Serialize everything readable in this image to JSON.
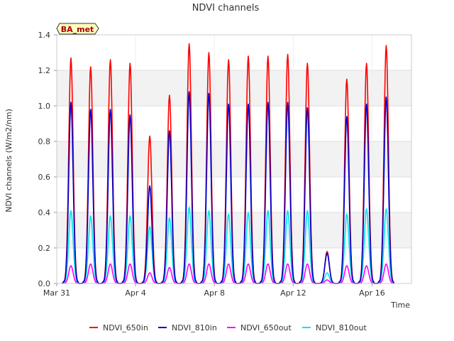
{
  "chart_data": {
    "type": "line",
    "title": "NDVI channels",
    "xlabel": "Time",
    "ylabel": "NDVI channels (W/m2/nm)",
    "badge": "BA_met",
    "xlim": [
      0,
      18
    ],
    "ylim": [
      0,
      1.4
    ],
    "x_ticks": [
      {
        "x": 0,
        "label": "Mar 31"
      },
      {
        "x": 4,
        "label": "Apr 4"
      },
      {
        "x": 8,
        "label": "Apr 8"
      },
      {
        "x": 12,
        "label": "Apr 12"
      },
      {
        "x": 16,
        "label": "Apr 16"
      }
    ],
    "y_ticks": [
      {
        "y": 0.0,
        "label": "0.0"
      },
      {
        "y": 0.2,
        "label": "0.2"
      },
      {
        "y": 0.4,
        "label": "0.4"
      },
      {
        "y": 0.6,
        "label": "0.6"
      },
      {
        "y": 0.8,
        "label": "0.8"
      },
      {
        "y": 1.0,
        "label": "1.0"
      },
      {
        "y": 1.2,
        "label": "1.2"
      },
      {
        "y": 1.4,
        "label": "1.4"
      }
    ],
    "days": [
      0,
      1,
      2,
      3,
      4,
      5,
      6,
      7,
      8,
      9,
      10,
      11,
      12,
      13,
      14,
      15,
      16
    ],
    "series": [
      {
        "name": "NDVI_650in",
        "color": "#ff0000",
        "daily_peaks": [
          1.27,
          1.22,
          1.26,
          1.24,
          0.83,
          1.06,
          1.35,
          1.3,
          1.26,
          1.28,
          1.28,
          1.29,
          1.24,
          0.18,
          1.15,
          1.24,
          1.34
        ]
      },
      {
        "name": "NDVI_810in",
        "color": "#0000cc",
        "daily_peaks": [
          1.02,
          0.98,
          0.98,
          0.95,
          0.55,
          0.86,
          1.08,
          1.07,
          1.01,
          1.01,
          1.02,
          1.02,
          0.99,
          0.17,
          0.94,
          1.01,
          1.05
        ]
      },
      {
        "name": "NDVI_650out",
        "color": "#ff00ff",
        "daily_peaks": [
          0.1,
          0.11,
          0.11,
          0.11,
          0.06,
          0.09,
          0.11,
          0.11,
          0.11,
          0.11,
          0.11,
          0.11,
          0.11,
          0.02,
          0.1,
          0.1,
          0.11
        ]
      },
      {
        "name": "NDVI_810out",
        "color": "#00e5ee",
        "daily_peaks": [
          0.41,
          0.38,
          0.38,
          0.38,
          0.32,
          0.37,
          0.43,
          0.41,
          0.39,
          0.4,
          0.41,
          0.41,
          0.41,
          0.06,
          0.39,
          0.42,
          0.42
        ]
      }
    ]
  }
}
